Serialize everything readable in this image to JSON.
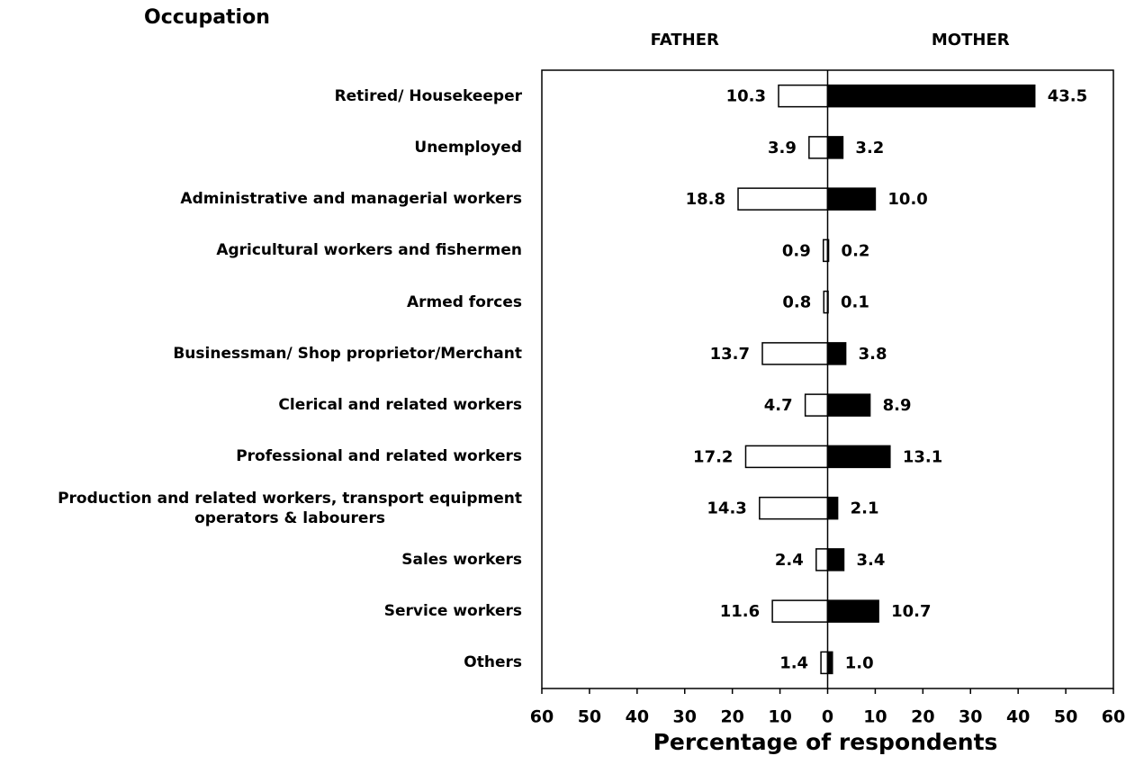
{
  "chart_data": {
    "type": "butterfly",
    "title": "Occupation",
    "x_label": "Percentage of respondents",
    "categories": [
      "Retired/ Housekeeper",
      "Unemployed",
      "Administrative and managerial workers",
      "Agricultural workers and fishermen",
      "Armed forces",
      "Businessman/ Shop proprietor/Merchant",
      "Clerical and related workers",
      "Professional and related workers",
      "Production and related workers, transport equipment\noperators & labourers",
      "Sales workers",
      "Service workers",
      "Others"
    ],
    "series": [
      {
        "name": "FATHER",
        "side": "left",
        "color": "#ffffff",
        "values": [
          10.3,
          3.9,
          18.8,
          0.9,
          0.8,
          13.7,
          4.7,
          17.2,
          14.3,
          2.4,
          11.6,
          1.4
        ]
      },
      {
        "name": "MOTHER",
        "side": "right",
        "color": "#000000",
        "values": [
          43.5,
          3.2,
          10.0,
          0.2,
          0.1,
          3.8,
          8.9,
          13.1,
          2.1,
          3.4,
          10.7,
          1.0
        ],
        "value_labels": [
          "43.5",
          "3.2",
          "10.0",
          "0.2",
          "0.1",
          "3.8",
          "8.9",
          "13.1",
          "2.1",
          "3.4",
          "10.7",
          "1.0"
        ]
      }
    ],
    "xlim": [
      -60,
      60
    ],
    "xticks": [
      {
        "value": -60,
        "label": "60"
      },
      {
        "value": -50,
        "label": "50"
      },
      {
        "value": -40,
        "label": "40"
      },
      {
        "value": -30,
        "label": "30"
      },
      {
        "value": -20,
        "label": "20"
      },
      {
        "value": -10,
        "label": "10"
      },
      0,
      10,
      20,
      30,
      40,
      50,
      60
    ]
  }
}
